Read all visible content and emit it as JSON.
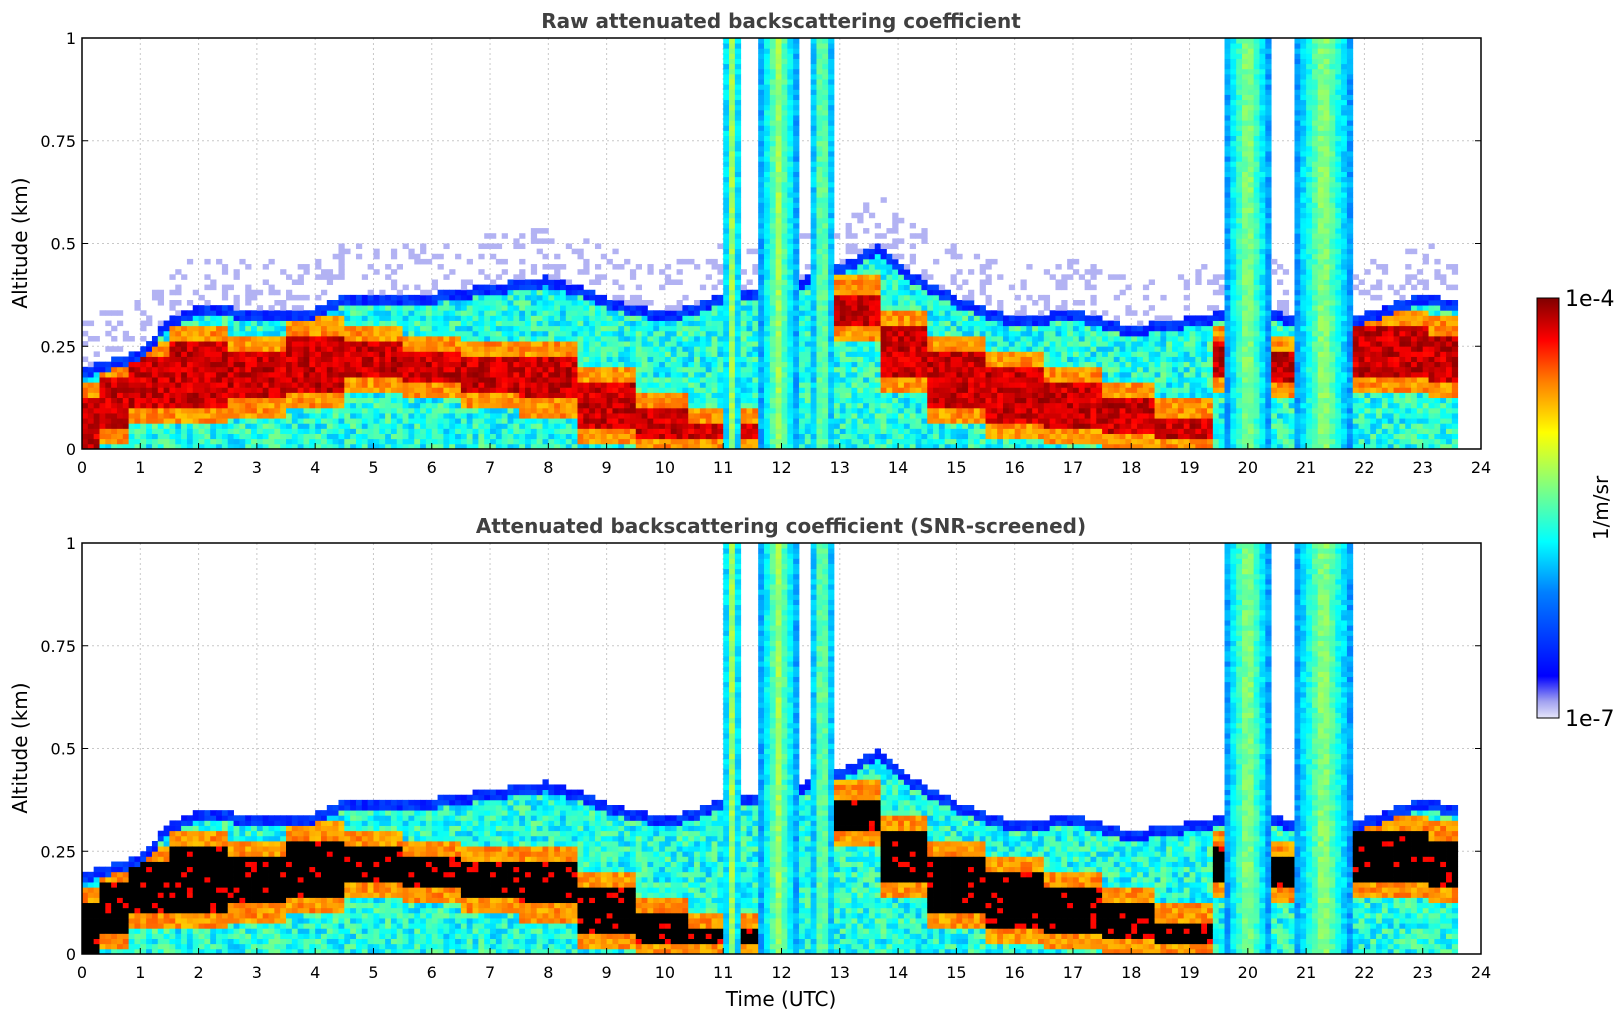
{
  "chart_data": [
    {
      "type": "heatmap",
      "title": "Raw attenuated backscattering coefficient",
      "xlabel": "",
      "ylabel": "Altitude (km)",
      "xlim": [
        0,
        24
      ],
      "ylim": [
        0,
        1
      ],
      "xticks": [
        "0",
        "1",
        "2",
        "3",
        "4",
        "5",
        "6",
        "7",
        "8",
        "9",
        "10",
        "11",
        "12",
        "13",
        "14",
        "15",
        "16",
        "17",
        "18",
        "19",
        "20",
        "21",
        "22",
        "23",
        "24"
      ],
      "yticks": [
        "0",
        "0.25",
        "0.5",
        "0.75",
        "1"
      ],
      "grid": true,
      "features": {
        "boundary_layer_top_km": [
          [
            0,
            0.2
          ],
          [
            1,
            0.24
          ],
          [
            1.5,
            0.32
          ],
          [
            2,
            0.35
          ],
          [
            3,
            0.34
          ],
          [
            4,
            0.34
          ],
          [
            4.5,
            0.38
          ],
          [
            5,
            0.37
          ],
          [
            6,
            0.38
          ],
          [
            7,
            0.4
          ],
          [
            8,
            0.42
          ],
          [
            8.5,
            0.4
          ],
          [
            9,
            0.37
          ],
          [
            10,
            0.33
          ],
          [
            10.5,
            0.35
          ],
          [
            11,
            0.38
          ],
          [
            12,
            0.4
          ],
          [
            13,
            0.45
          ],
          [
            13.7,
            0.5
          ],
          [
            14,
            0.45
          ],
          [
            15,
            0.37
          ],
          [
            16,
            0.32
          ],
          [
            17,
            0.34
          ],
          [
            18,
            0.3
          ],
          [
            19,
            0.32
          ],
          [
            20,
            0.35
          ],
          [
            21,
            0.32
          ],
          [
            22,
            0.33
          ],
          [
            23,
            0.38
          ],
          [
            23.6,
            0.36
          ]
        ],
        "dense_layer": [
          [
            0,
            0,
            0.12
          ],
          [
            0.5,
            0.05,
            0.18
          ],
          [
            1,
            0.1,
            0.22
          ],
          [
            2,
            0.1,
            0.26
          ],
          [
            3,
            0.12,
            0.24
          ],
          [
            4,
            0.14,
            0.28
          ],
          [
            5,
            0.18,
            0.26
          ],
          [
            6,
            0.16,
            0.24
          ],
          [
            7,
            0.14,
            0.22
          ],
          [
            8,
            0.12,
            0.22
          ],
          [
            9,
            0.05,
            0.16
          ],
          [
            10,
            0.02,
            0.1
          ],
          [
            10.8,
            0.02,
            0.06
          ],
          [
            13.4,
            0.3,
            0.38
          ],
          [
            14,
            0.18,
            0.3
          ],
          [
            15,
            0.1,
            0.24
          ],
          [
            16,
            0.06,
            0.2
          ],
          [
            17,
            0.05,
            0.16
          ],
          [
            18,
            0.04,
            0.12
          ],
          [
            18.8,
            0.03,
            0.08
          ],
          [
            20,
            0.18,
            0.26
          ],
          [
            20.7,
            0.16,
            0.24
          ],
          [
            22.5,
            0.18,
            0.3
          ],
          [
            23.6,
            0.16,
            0.28
          ]
        ],
        "precipitation_columns": [
          {
            "x0": 11.0,
            "x1": 11.3,
            "top": 1.0
          },
          {
            "x0": 11.6,
            "x1": 12.3,
            "top": 1.0
          },
          {
            "x0": 12.5,
            "x1": 12.9,
            "top": 1.0
          },
          {
            "x0": 19.6,
            "x1": 20.4,
            "top": 1.0
          },
          {
            "x0": 20.8,
            "x1": 21.8,
            "top": 1.0
          }
        ]
      }
    },
    {
      "type": "heatmap",
      "title": "Attenuated backscattering coefficient (SNR-screened)",
      "xlabel": "Time (UTC)",
      "ylabel": "Altitude (km)",
      "xlim": [
        0,
        24
      ],
      "ylim": [
        0,
        1
      ],
      "xticks": [
        "0",
        "1",
        "2",
        "3",
        "4",
        "5",
        "6",
        "7",
        "8",
        "9",
        "10",
        "11",
        "12",
        "13",
        "14",
        "15",
        "16",
        "17",
        "18",
        "19",
        "20",
        "21",
        "22",
        "23",
        "24"
      ],
      "yticks": [
        "0",
        "0.25",
        "0.5",
        "0.75",
        "1"
      ],
      "grid": true,
      "saturated_color": "#000000"
    }
  ],
  "colorbar": {
    "label": "1/m/sr",
    "max_label": "1e-4",
    "min_label": "1e-7",
    "colormap": "jet",
    "low_color": "#e6e6fa",
    "high_color": "#800000"
  }
}
